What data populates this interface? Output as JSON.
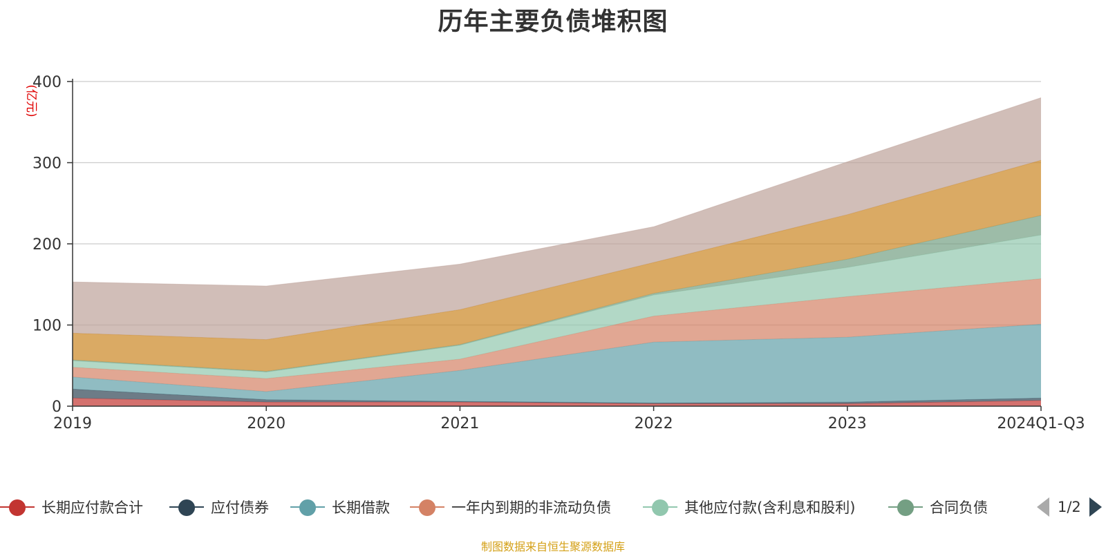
{
  "title": "历年主要负债堆积图",
  "source": "制图数据来自恒生聚源数据库",
  "pager": {
    "text": "1/2",
    "prev_icon": "triangle-left-icon",
    "next_icon": "triangle-right-icon"
  },
  "chart_data": {
    "type": "area",
    "stacked": true,
    "title": "历年主要负债堆积图",
    "ylabel": "(亿元)",
    "ylim": [
      0,
      400
    ],
    "yticks": [
      0,
      100,
      200,
      300,
      400
    ],
    "grid": true,
    "legend_position": "bottom",
    "categories": [
      "2019",
      "2020",
      "2021",
      "2022",
      "2023",
      "2024Q1-Q3"
    ],
    "series": [
      {
        "name": "长期应付款合计",
        "color": "#c23531",
        "legend": true,
        "values": [
          10,
          5,
          5,
          3,
          3,
          7
        ]
      },
      {
        "name": "应付债券",
        "color": "#2f4554",
        "legend": true,
        "values": [
          11,
          3,
          1,
          1,
          2,
          3
        ]
      },
      {
        "name": "长期借款",
        "color": "#61a0a8",
        "legend": true,
        "values": [
          15,
          10,
          38,
          75,
          80,
          91
        ]
      },
      {
        "name": "一年内到期的非流动负债",
        "color": "#d48265",
        "legend": true,
        "values": [
          12,
          16,
          14,
          32,
          50,
          56
        ]
      },
      {
        "name": "其他应付款(含利息和股利)",
        "color": "#91c7ae",
        "legend": true,
        "values": [
          8,
          8,
          17,
          26,
          36,
          54
        ]
      },
      {
        "name": "合同负债",
        "color": "#749f83",
        "legend": true,
        "values": [
          1,
          1,
          1,
          2,
          10,
          24
        ]
      },
      {
        "name": "",
        "color": "#ca8622",
        "legend": false,
        "values": [
          33,
          39,
          43,
          38,
          55,
          68
        ]
      },
      {
        "name": "",
        "color": "#bda29a",
        "legend": false,
        "values": [
          63,
          66,
          56,
          44,
          65,
          77
        ]
      }
    ]
  }
}
